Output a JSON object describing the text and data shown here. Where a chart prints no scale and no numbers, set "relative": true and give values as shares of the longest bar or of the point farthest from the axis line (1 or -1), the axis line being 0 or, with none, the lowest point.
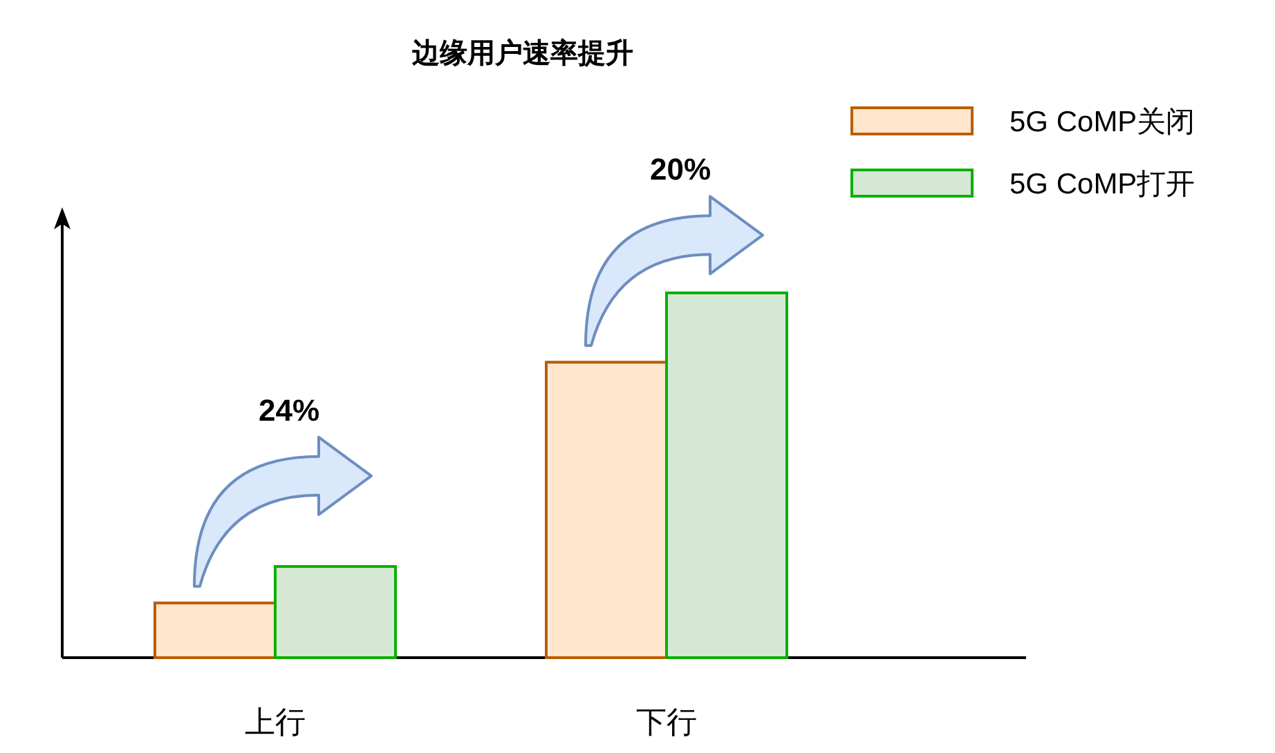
{
  "chart_data": {
    "type": "bar",
    "title": "边缘用户速率提升",
    "categories": [
      "上行",
      "下行"
    ],
    "relative": true,
    "legend": "top right",
    "series": [
      {
        "name": "5G CoMP关闭",
        "color": "#ffe6cc",
        "values": [
          0.15,
          0.81
        ]
      },
      {
        "name": "5G CoMP打开",
        "color": "#d5e8d4",
        "values": [
          0.25,
          1
        ]
      }
    ],
    "annotations": [
      "24%",
      "20%"
    ]
  }
}
